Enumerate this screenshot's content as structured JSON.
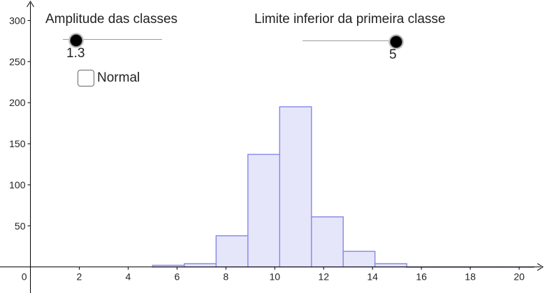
{
  "controls": {
    "amplitude": {
      "label": "Amplitude das classes",
      "value_text": "1.3",
      "value": 1.3,
      "min": 1,
      "max": 5
    },
    "limite": {
      "label": "Limite inferior da primeira classe",
      "value_text": "5",
      "value": 5,
      "min": 1,
      "max": 5
    },
    "normal": {
      "label": "Normal",
      "checked": false
    }
  },
  "chart_data": {
    "type": "bar",
    "title": "",
    "xlabel": "",
    "ylabel": "",
    "xlim": [
      -0.3,
      21
    ],
    "ylim": [
      -30,
      325
    ],
    "x_ticks": [
      0,
      2,
      4,
      6,
      8,
      10,
      12,
      14,
      16,
      18,
      20
    ],
    "y_ticks": [
      50,
      100,
      150,
      200,
      250,
      300
    ],
    "grid": false,
    "bin_width": 1.3,
    "bins": [
      {
        "x0": 5.0,
        "x1": 6.3,
        "value": 2
      },
      {
        "x0": 6.3,
        "x1": 7.6,
        "value": 4
      },
      {
        "x0": 7.6,
        "x1": 8.9,
        "value": 38
      },
      {
        "x0": 8.9,
        "x1": 10.2,
        "value": 137
      },
      {
        "x0": 10.2,
        "x1": 11.5,
        "value": 195
      },
      {
        "x0": 11.5,
        "x1": 12.8,
        "value": 61
      },
      {
        "x0": 12.8,
        "x1": 14.1,
        "value": 19
      },
      {
        "x0": 14.1,
        "x1": 15.4,
        "value": 4
      },
      {
        "x0": 15.4,
        "x1": 16.7,
        "value": 0
      },
      {
        "x0": 16.7,
        "x1": 18.0,
        "value": 0
      },
      {
        "x0": 18.0,
        "x1": 19.3,
        "value": 0
      },
      {
        "x0": 19.3,
        "x1": 20.6,
        "value": 0
      }
    ],
    "colors": {
      "bar_fill": "#e6e6fa",
      "bar_stroke": "#8c8cea",
      "axis": "#000000"
    }
  }
}
